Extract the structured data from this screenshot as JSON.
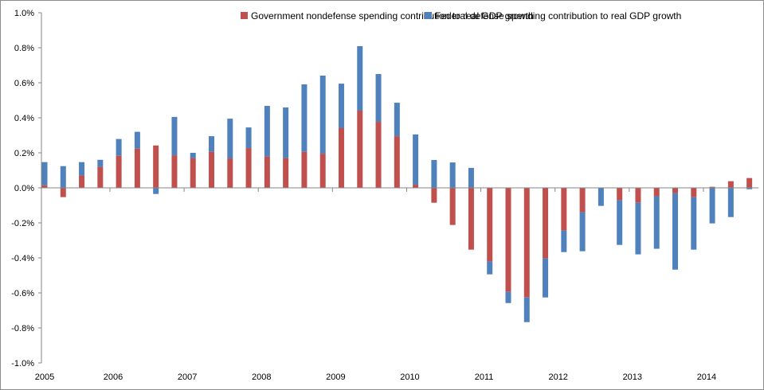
{
  "chart_data": {
    "type": "bar",
    "stacked": true,
    "title": "",
    "xlabel": "",
    "ylabel": "",
    "ylim": [
      -1.0,
      1.0
    ],
    "y_ticks": [
      "1.0%",
      "0.8%",
      "0.6%",
      "0.4%",
      "0.2%",
      "0.0%",
      "-0.2%",
      "-0.4%",
      "-0.6%",
      "-0.8%",
      "-1.0%"
    ],
    "y_tick_values": [
      1.0,
      0.8,
      0.6,
      0.4,
      0.2,
      0.0,
      -0.2,
      -0.4,
      -0.6,
      -0.8,
      -1.0
    ],
    "x_tick_labels": [
      "2005",
      "2006",
      "2007",
      "2008",
      "2009",
      "2010",
      "2011",
      "2012",
      "2013",
      "2014"
    ],
    "categories": [
      "2005Q1",
      "2005Q2",
      "2005Q3",
      "2005Q4",
      "2006Q1",
      "2006Q2",
      "2006Q3",
      "2006Q4",
      "2007Q1",
      "2007Q2",
      "2007Q3",
      "2007Q4",
      "2008Q1",
      "2008Q2",
      "2008Q3",
      "2008Q4",
      "2009Q1",
      "2009Q2",
      "2009Q3",
      "2009Q4",
      "2010Q1",
      "2010Q2",
      "2010Q3",
      "2010Q4",
      "2011Q1",
      "2011Q2",
      "2011Q3",
      "2011Q4",
      "2012Q1",
      "2012Q2",
      "2012Q3",
      "2012Q4",
      "2013Q1",
      "2013Q2",
      "2013Q3",
      "2013Q4",
      "2014Q1",
      "2014Q2",
      "2014Q3"
    ],
    "legend_position": "top",
    "grid": false,
    "series": [
      {
        "name": "Government nondefense spending contribution to real GDP growth",
        "color": "#C0504D",
        "values": [
          0.015,
          -0.053,
          0.071,
          0.12,
          0.183,
          0.224,
          0.242,
          0.186,
          0.17,
          0.206,
          0.168,
          0.227,
          0.179,
          0.17,
          0.206,
          0.195,
          0.341,
          0.441,
          0.377,
          0.295,
          0.018,
          -0.085,
          -0.212,
          -0.353,
          -0.421,
          -0.594,
          -0.626,
          -0.403,
          -0.244,
          -0.139,
          0.0,
          -0.071,
          -0.085,
          -0.048,
          -0.03,
          -0.053,
          0.006,
          0.038,
          0.056
        ]
      },
      {
        "name": "Federal defense spending contribution to real GDP growth",
        "color": "#4F81BD",
        "values": [
          0.132,
          0.124,
          0.076,
          0.04,
          0.096,
          0.096,
          -0.035,
          0.219,
          0.03,
          0.089,
          0.227,
          0.118,
          0.289,
          0.289,
          0.385,
          0.446,
          0.254,
          0.368,
          0.273,
          0.191,
          0.287,
          0.159,
          0.145,
          0.114,
          -0.073,
          -0.064,
          -0.141,
          -0.223,
          -0.123,
          -0.223,
          -0.103,
          -0.255,
          -0.295,
          -0.3,
          -0.437,
          -0.3,
          -0.203,
          -0.167,
          -0.008
        ]
      }
    ]
  }
}
